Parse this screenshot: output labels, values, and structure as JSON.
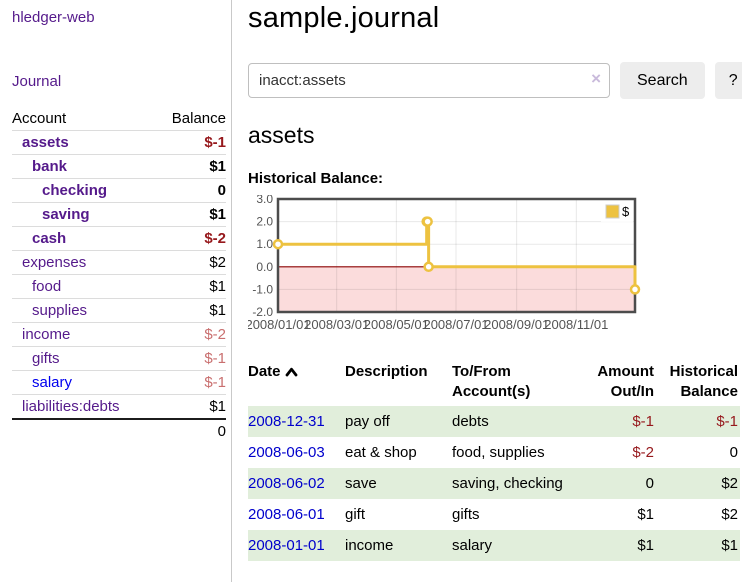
{
  "app": {
    "title": "hledger-web"
  },
  "colors": {
    "link_purple": "#551a8b",
    "link_blue": "#0000ee",
    "date_link_blue": "#0000cc",
    "negative_strong": "#96181c",
    "negative_soft": "#c96f6f",
    "row_stripe_green": "#e1eedb",
    "chart_series_gold": "#edc240",
    "chart_negative_fill": "#fbdcdc",
    "chart_zero_line": "#8b0000"
  },
  "sidebar": {
    "journal_link": "Journal",
    "table": {
      "headers": [
        "Account",
        "Balance"
      ],
      "rows": [
        {
          "name": "assets",
          "balance": "$-1",
          "level": 1,
          "bold": true,
          "link": "purple",
          "neg": "strong"
        },
        {
          "name": "bank",
          "balance": "$1",
          "level": 2,
          "bold": true,
          "link": "purple",
          "neg": "none"
        },
        {
          "name": "checking",
          "balance": "0",
          "level": 3,
          "bold": true,
          "link": "purple",
          "neg": "none"
        },
        {
          "name": "saving",
          "balance": "$1",
          "level": 3,
          "bold": true,
          "link": "purple",
          "neg": "none"
        },
        {
          "name": "cash",
          "balance": "$-2",
          "level": 2,
          "bold": true,
          "link": "purple",
          "neg": "strong"
        },
        {
          "name": "expenses",
          "balance": "$2",
          "level": 1,
          "bold": false,
          "link": "purple",
          "neg": "none"
        },
        {
          "name": "food",
          "balance": "$1",
          "level": 2,
          "bold": false,
          "link": "purple",
          "neg": "none"
        },
        {
          "name": "supplies",
          "balance": "$1",
          "level": 2,
          "bold": false,
          "link": "purple",
          "neg": "none"
        },
        {
          "name": "income",
          "balance": "$-2",
          "level": 1,
          "bold": false,
          "link": "purple",
          "neg": "soft"
        },
        {
          "name": "gifts",
          "balance": "$-1",
          "level": 2,
          "bold": false,
          "link": "purple",
          "neg": "soft"
        },
        {
          "name": "salary",
          "balance": "$-1",
          "level": 2,
          "bold": false,
          "link": "blue",
          "neg": "soft"
        },
        {
          "name": "liabilities:debts",
          "balance": "$1",
          "level": 1,
          "bold": false,
          "link": "purple",
          "neg": "none"
        }
      ],
      "total": "0"
    }
  },
  "header": {
    "title": "sample.journal"
  },
  "search": {
    "value": "inacct:assets",
    "clear_icon": "×",
    "button": "Search",
    "help_button": "?"
  },
  "account_page": {
    "title": "assets",
    "chart_label": "Historical Balance:"
  },
  "chart_data": {
    "type": "line",
    "step": true,
    "title": "Historical Balance",
    "xlim": [
      "2008-01-01",
      "2008-12-31"
    ],
    "ylim": [
      -2,
      3
    ],
    "y_ticks": [
      "3.0",
      "2.0",
      "1.0",
      "0.0",
      "-1.0",
      "-2.0"
    ],
    "x_ticks": [
      "2008/01/01",
      "2008/03/01",
      "2008/05/01",
      "2008/07/01",
      "2008/09/01",
      "2008/11/01"
    ],
    "grid": true,
    "legend": {
      "label": "$",
      "position": "top-right"
    },
    "series": [
      {
        "name": "$",
        "color": "#edc240",
        "points": [
          [
            "2008-01-01",
            1
          ],
          [
            "2008-06-01",
            2
          ],
          [
            "2008-06-02",
            2
          ],
          [
            "2008-06-03",
            0
          ],
          [
            "2008-12-31",
            -1
          ]
        ]
      }
    ]
  },
  "register": {
    "headers": [
      "Date",
      "Description",
      "To/From Account(s)",
      "Amount Out/In",
      "Historical Balance"
    ],
    "rows": [
      {
        "date": "2008-12-31",
        "description": "pay off",
        "accounts": "debts",
        "amount": "$-1",
        "balance": "$-1",
        "amount_neg": true,
        "balance_neg": true
      },
      {
        "date": "2008-06-03",
        "description": "eat & shop",
        "accounts": "food, supplies",
        "amount": "$-2",
        "balance": "0",
        "amount_neg": true,
        "balance_neg": false
      },
      {
        "date": "2008-06-02",
        "description": "save",
        "accounts": "saving, checking",
        "amount": "0",
        "balance": "$2",
        "amount_neg": false,
        "balance_neg": false
      },
      {
        "date": "2008-06-01",
        "description": "gift",
        "accounts": "gifts",
        "amount": "$1",
        "balance": "$2",
        "amount_neg": false,
        "balance_neg": false
      },
      {
        "date": "2008-01-01",
        "description": "income",
        "accounts": "salary",
        "amount": "$1",
        "balance": "$1",
        "amount_neg": false,
        "balance_neg": false
      }
    ]
  }
}
